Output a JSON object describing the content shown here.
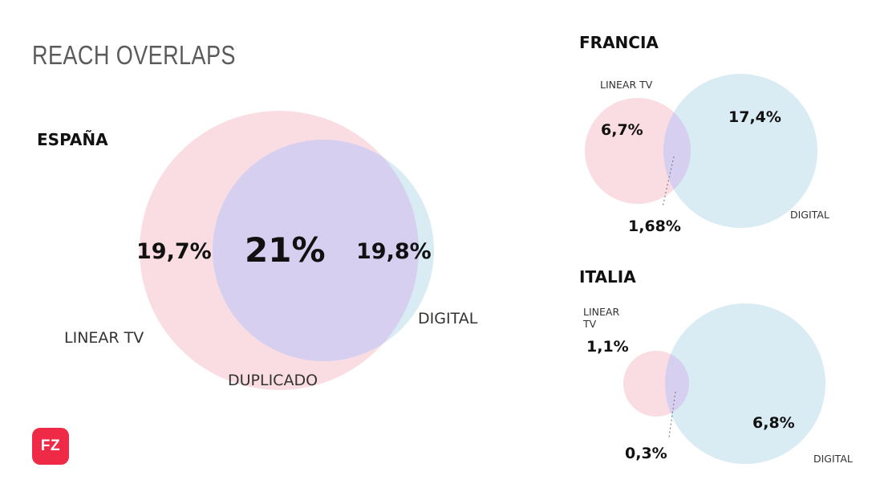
{
  "title": "REACH OVERLAPS",
  "colors": {
    "linear_tv": "#fadde3",
    "digital": "#d9ebf3",
    "overlap": "#d6cff0"
  },
  "logo_text": "FZ",
  "espana": {
    "name": "ESPAÑA",
    "linear_tv_pct": "19,7%",
    "duplicated_pct": "21%",
    "digital_pct": "19,8%",
    "linear_tv_label": "LINEAR TV",
    "digital_label": "DIGITAL",
    "duplicated_label": "DUPLICADO"
  },
  "francia": {
    "name": "FRANCIA",
    "linear_tv_label": "LINEAR TV",
    "linear_tv_pct": "6,7%",
    "digital_pct": "17,4%",
    "duplicated_pct": "1,68%",
    "digital_label": "DIGITAL"
  },
  "italia": {
    "name": "ITALIA",
    "linear_tv_label_line1": "LINEAR",
    "linear_tv_label_line2": "TV",
    "linear_tv_pct": "1,1%",
    "duplicated_pct": "0,3%",
    "digital_pct": "6,8%",
    "digital_label": "DIGITAL"
  }
}
